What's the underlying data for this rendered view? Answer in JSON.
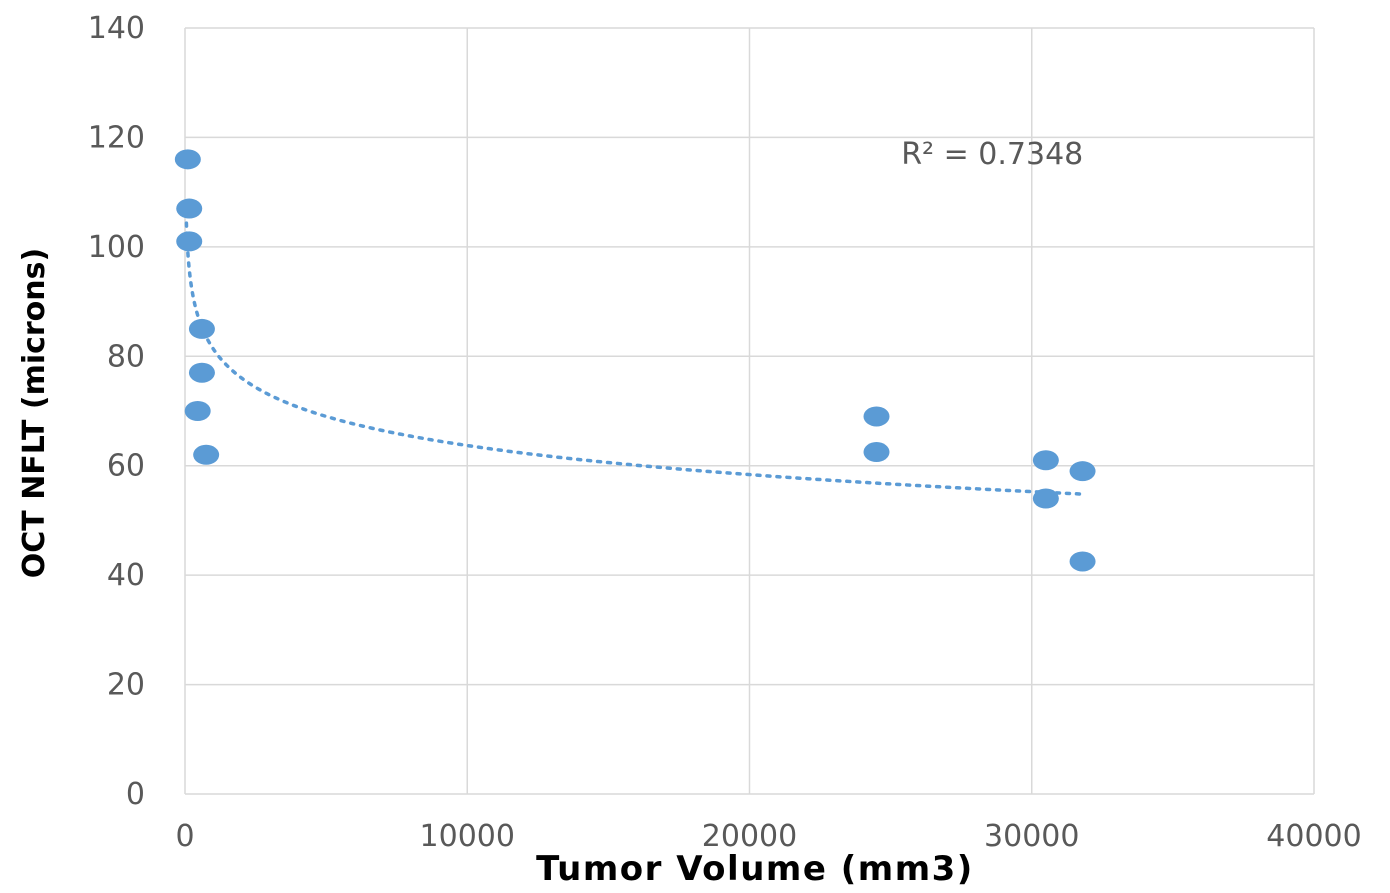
{
  "chart_data": {
    "type": "scatter",
    "xlabel": "Tumor Volume (mm3)",
    "ylabel": "OCT NFLT (microns)",
    "xlim": [
      0,
      40000
    ],
    "ylim": [
      0,
      140
    ],
    "x_ticks": [
      "0",
      "10000",
      "20000",
      "30000",
      "40000"
    ],
    "y_ticks": [
      "0",
      "20",
      "40",
      "60",
      "80",
      "100",
      "120",
      "140"
    ],
    "grid": true,
    "series": [
      {
        "points": [
          {
            "x": 100,
            "y": 116
          },
          {
            "x": 150,
            "y": 107
          },
          {
            "x": 150,
            "y": 101
          },
          {
            "x": 600,
            "y": 85
          },
          {
            "x": 600,
            "y": 77
          },
          {
            "x": 450,
            "y": 70
          },
          {
            "x": 750,
            "y": 62
          },
          {
            "x": 24500,
            "y": 69
          },
          {
            "x": 24500,
            "y": 62.5
          },
          {
            "x": 30500,
            "y": 61
          },
          {
            "x": 30500,
            "y": 54
          },
          {
            "x": 31800,
            "y": 59
          },
          {
            "x": 31800,
            "y": 42.5
          }
        ],
        "color": "#5b9bd5"
      }
    ],
    "trendline": {
      "type": "logarithmic",
      "color": "#5b9bd5",
      "x_range": [
        50,
        31800
      ]
    },
    "annotations": [
      {
        "text": "R² = 0.7348",
        "x": 27500,
        "y": 117
      }
    ]
  }
}
